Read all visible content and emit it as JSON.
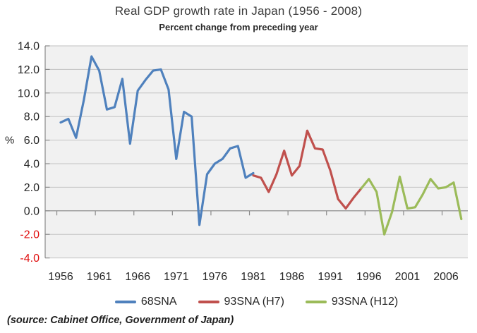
{
  "chart": {
    "title": "Real GDP growth rate in Japan (1956 - 2008)",
    "subtitle": "Percent change from preceding year",
    "source_note": "(source:  Cabinet Office, Government of Japan)"
  },
  "y_axis": {
    "unit_label": "%",
    "max": 14.0,
    "min": -4.0,
    "step": 2.0,
    "tick_labels": [
      "14.0",
      "12.0",
      "10.0",
      "8.0",
      "6.0",
      "4.0",
      "2.0",
      "0.0",
      "-2.0",
      "-4.0"
    ],
    "tick_label_color": "#262626",
    "negative_tick_label_color": "#e01010"
  },
  "x_axis": {
    "start_year": 1956,
    "end_year": 2008,
    "tick_labels": [
      "1956",
      "1961",
      "1966",
      "1971",
      "1976",
      "1981",
      "1986",
      "1991",
      "1996",
      "2001",
      "2006"
    ],
    "tick_label_color": "#262626"
  },
  "chart_data": {
    "type": "line",
    "title": "Real GDP growth rate in Japan (1956 - 2008)",
    "subtitle": "Percent change from preceding year",
    "ylabel": "%",
    "ylim": [
      -4.0,
      14.0
    ],
    "x_range": [
      1956,
      2008
    ],
    "x_frequency": "annual",
    "grid": true,
    "legend_position": "bottom",
    "series": [
      {
        "name": "68SNA",
        "color": "#4F81BD",
        "start_year": 1956,
        "values": [
          7.5,
          7.8,
          6.2,
          9.4,
          13.1,
          11.9,
          8.6,
          8.8,
          11.2,
          5.7,
          10.2,
          11.1,
          11.9,
          12.0,
          10.3,
          4.4,
          8.4,
          8.0,
          -1.2,
          3.1,
          4.0,
          4.4,
          5.3,
          5.5,
          2.8,
          3.2
        ]
      },
      {
        "name": "93SNA (H7)",
        "color": "#C0504D",
        "start_year": 1981,
        "values": [
          3.0,
          2.8,
          1.6,
          3.1,
          5.1,
          3.0,
          3.8,
          6.8,
          5.3,
          5.2,
          3.4,
          1.0,
          0.2,
          1.1,
          1.9
        ]
      },
      {
        "name": "93SNA (H12)",
        "color": "#9BBB59",
        "start_year": 1995,
        "values": [
          1.9,
          2.7,
          1.6,
          -2.0,
          -0.1,
          2.9,
          0.2,
          0.3,
          1.4,
          2.7,
          1.9,
          2.0,
          2.4,
          -0.7
        ]
      }
    ]
  },
  "colors": {
    "plot_background": "#f1f1f1",
    "gridline": "#c2c2c2",
    "axis_line": "#8a8a8a",
    "text": "#262626"
  }
}
